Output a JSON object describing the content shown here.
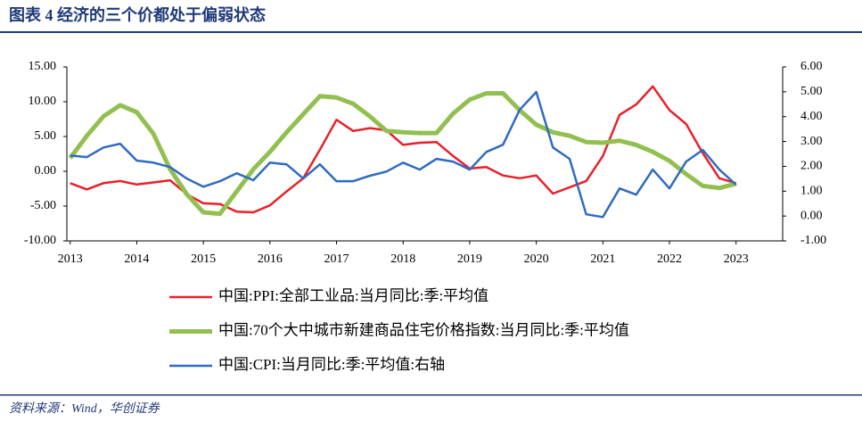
{
  "header": {
    "title": "图表 4   经济的三个价都处于偏弱状态"
  },
  "chart_data": {
    "type": "line",
    "x": [
      2013,
      2013.25,
      2013.5,
      2013.75,
      2014,
      2014.25,
      2014.5,
      2014.75,
      2015,
      2015.25,
      2015.5,
      2015.75,
      2016,
      2016.25,
      2016.5,
      2016.75,
      2017,
      2017.25,
      2017.5,
      2017.75,
      2018,
      2018.25,
      2018.5,
      2018.75,
      2019,
      2019.25,
      2019.5,
      2019.75,
      2020,
      2020.25,
      2020.5,
      2020.75,
      2021,
      2021.25,
      2021.5,
      2021.75,
      2022,
      2022.25,
      2022.5,
      2022.75,
      2023
    ],
    "series": [
      {
        "name": "中国:PPI:全部工业品:当月同比:季:平均值",
        "color": "#e8202a",
        "axis": "y",
        "values": [
          -1.7,
          -2.6,
          -1.7,
          -1.4,
          -1.9,
          -1.6,
          -1.3,
          -3.3,
          -4.6,
          -4.7,
          -5.8,
          -5.9,
          -4.9,
          -2.9,
          -1.0,
          3.1,
          7.4,
          5.8,
          6.2,
          5.9,
          3.8,
          4.1,
          4.2,
          2.2,
          0.4,
          0.6,
          -0.6,
          -1.0,
          -0.6,
          -3.2,
          -2.3,
          -1.4,
          2.2,
          8.1,
          9.6,
          12.2,
          8.8,
          6.8,
          2.6,
          -1.0,
          -1.7
        ]
      },
      {
        "name": "中国:70个大中城市新建商品住宅价格指数:当月同比:季:平均值",
        "color": "#92c050",
        "axis": "y",
        "values": [
          1.9,
          5.1,
          7.9,
          9.5,
          8.5,
          5.4,
          0.3,
          -3.3,
          -5.9,
          -6.1,
          -2.9,
          0.3,
          2.8,
          5.6,
          8.2,
          10.8,
          10.6,
          9.7,
          7.9,
          5.8,
          5.6,
          5.5,
          5.5,
          8.3,
          10.3,
          11.2,
          11.2,
          8.8,
          6.7,
          5.6,
          5.1,
          4.2,
          4.1,
          4.4,
          3.8,
          2.8,
          1.5,
          -0.4,
          -2.1,
          -2.4,
          -1.8
        ]
      },
      {
        "name": "中国:CPI:当月同比:季:平均值:右轴",
        "color": "#2e6bc0",
        "axis": "y2",
        "values": [
          2.44,
          2.37,
          2.76,
          2.91,
          2.23,
          2.15,
          1.97,
          1.51,
          1.18,
          1.4,
          1.72,
          1.44,
          2.15,
          2.08,
          1.51,
          2.08,
          1.4,
          1.4,
          1.62,
          1.79,
          2.15,
          1.87,
          2.3,
          2.19,
          1.87,
          2.58,
          2.87,
          4.27,
          4.99,
          2.76,
          2.3,
          0.07,
          -0.04,
          1.11,
          0.86,
          1.87,
          1.11,
          2.19,
          2.66,
          1.87,
          1.26
        ]
      }
    ],
    "xlim": [
      2012.95,
      2023.7
    ],
    "xticks": [
      2013,
      2014,
      2015,
      2016,
      2017,
      2018,
      2019,
      2020,
      2021,
      2022,
      2023
    ],
    "ylim": [
      -10,
      15
    ],
    "yticks": [
      {
        "value": -10,
        "label": "-10.00"
      },
      {
        "value": -5,
        "label": "-5.00"
      },
      {
        "value": 0,
        "label": "0.00"
      },
      {
        "value": 5,
        "label": "5.00"
      },
      {
        "value": 10,
        "label": "10.00"
      },
      {
        "value": 15,
        "label": "15.00"
      }
    ],
    "y2lim": [
      -1,
      6
    ],
    "y2ticks": [
      {
        "value": -1,
        "label": "-1.00"
      },
      {
        "value": 0,
        "label": "0.00"
      },
      {
        "value": 1,
        "label": "1.00"
      },
      {
        "value": 2,
        "label": "2.00"
      },
      {
        "value": 3,
        "label": "3.00"
      },
      {
        "value": 4,
        "label": "4.00"
      },
      {
        "value": 5,
        "label": "5.00"
      },
      {
        "value": 6,
        "label": "6.00"
      }
    ]
  },
  "footer": {
    "source": "资料来源：Wind，华创证券"
  }
}
